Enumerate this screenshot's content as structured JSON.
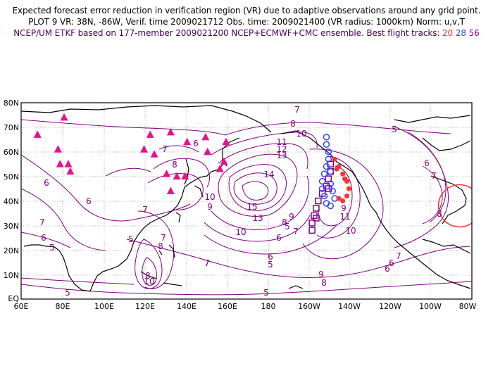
{
  "header": {
    "line1": "Expected forecast error reduction in verification region (VR) due to adaptive observations around any grid point.",
    "line2": "PLOT 9 VR: 38N, -86W, Verif. time 2009021712 Obs. time: 2009021400 (VR radius: 1000km) Norm: u,v,T",
    "line3_prefix": "NCEP/UM ETKF based on 177-member 2009021200 NCEP+ECMWF+CMC ensemble. Best flight tracks:",
    "track_ids": [
      "20",
      "28",
      "56"
    ]
  },
  "colors": {
    "contour": "#800080",
    "label": "#800080",
    "coast": "#000000",
    "triangle": "#e8108c",
    "track20": "#ff3030",
    "track28": "#3040ff",
    "track56": "#800080",
    "vr_circle": "#ff3030",
    "grid": "#999999"
  },
  "axes": {
    "lat_labels": [
      "80N",
      "70N",
      "60N",
      "50N",
      "40N",
      "30N",
      "20N",
      "10N",
      "EQ"
    ],
    "lon_labels": [
      "60E",
      "80E",
      "100E",
      "120E",
      "140E",
      "160E",
      "180",
      "160W",
      "140W",
      "120W",
      "100W",
      "80W"
    ]
  },
  "contour_labels": [
    {
      "text": "7"
    },
    {
      "text": "8"
    },
    {
      "text": "10"
    },
    {
      "text": "11"
    },
    {
      "text": "12"
    },
    {
      "text": "13"
    },
    {
      "text": "14"
    },
    {
      "text": "15"
    },
    {
      "text": "13"
    },
    {
      "text": "10"
    },
    {
      "text": "9"
    },
    {
      "text": "8"
    },
    {
      "text": "7"
    },
    {
      "text": "6"
    },
    {
      "text": "5"
    },
    {
      "text": "7"
    },
    {
      "text": "6"
    },
    {
      "text": "5"
    },
    {
      "text": "6"
    },
    {
      "text": "8"
    },
    {
      "text": "9"
    },
    {
      "text": "10"
    },
    {
      "text": "7"
    },
    {
      "text": "8"
    },
    {
      "text": "7"
    },
    {
      "text": "6"
    },
    {
      "text": "5"
    },
    {
      "text": "7"
    },
    {
      "text": "6"
    },
    {
      "text": "7"
    },
    {
      "text": "8"
    },
    {
      "text": "10"
    },
    {
      "text": "5"
    },
    {
      "text": "7"
    },
    {
      "text": "5"
    },
    {
      "text": "9"
    },
    {
      "text": "8"
    },
    {
      "text": "6"
    },
    {
      "text": "5"
    },
    {
      "text": "10"
    },
    {
      "text": "11"
    },
    {
      "text": "9"
    },
    {
      "text": "7"
    },
    {
      "text": "6"
    },
    {
      "text": "6"
    },
    {
      "text": "7"
    },
    {
      "text": "8"
    },
    {
      "text": "6"
    },
    {
      "text": "5"
    }
  ],
  "markers": {
    "triangles": [
      {
        "lon": 68,
        "lat": 67
      },
      {
        "lon": 81,
        "lat": 74
      },
      {
        "lon": 78,
        "lat": 61
      },
      {
        "lon": 79,
        "lat": 55
      },
      {
        "lon": 83,
        "lat": 55
      },
      {
        "lon": 84,
        "lat": 52
      },
      {
        "lon": 120,
        "lat": 61
      },
      {
        "lon": 123,
        "lat": 67
      },
      {
        "lon": 125,
        "lat": 59
      },
      {
        "lon": 133,
        "lat": 68
      },
      {
        "lon": 141,
        "lat": 64
      },
      {
        "lon": 150,
        "lat": 66
      },
      {
        "lon": 151,
        "lat": 60
      },
      {
        "lon": 160,
        "lat": 64
      },
      {
        "lon": 159,
        "lat": 56
      },
      {
        "lon": 157,
        "lat": 53
      },
      {
        "lon": 131,
        "lat": 51
      },
      {
        "lon": 136,
        "lat": 50
      },
      {
        "lon": 140,
        "lat": 50
      },
      {
        "lon": 133,
        "lat": 44
      }
    ],
    "track_20": [
      {
        "lon": -147,
        "lat": 57
      },
      {
        "lon": -145,
        "lat": 54
      },
      {
        "lon": -143,
        "lat": 51
      },
      {
        "lon": -141,
        "lat": 48
      },
      {
        "lon": -140,
        "lat": 45
      },
      {
        "lon": -141,
        "lat": 42
      },
      {
        "lon": -143,
        "lat": 40
      },
      {
        "lon": -145,
        "lat": 41
      },
      {
        "lon": -146,
        "lat": 53
      },
      {
        "lon": -142,
        "lat": 49
      }
    ],
    "track_28": [
      {
        "lon": -151,
        "lat": 66
      },
      {
        "lon": -151,
        "lat": 63
      },
      {
        "lon": -150,
        "lat": 60
      },
      {
        "lon": -150,
        "lat": 57
      },
      {
        "lon": -151,
        "lat": 54
      },
      {
        "lon": -152,
        "lat": 51
      },
      {
        "lon": -153,
        "lat": 48
      },
      {
        "lon": -153,
        "lat": 45
      },
      {
        "lon": -152,
        "lat": 42
      },
      {
        "lon": -151,
        "lat": 39
      },
      {
        "lon": -149,
        "lat": 38
      },
      {
        "lon": -147,
        "lat": 41
      },
      {
        "lon": -148,
        "lat": 44
      },
      {
        "lon": -149,
        "lat": 47
      },
      {
        "lon": -149,
        "lat": 52
      }
    ],
    "track_56": [
      {
        "lon": -149,
        "lat": 55
      },
      {
        "lon": -149,
        "lat": 52
      },
      {
        "lon": -150,
        "lat": 49
      },
      {
        "lon": -151,
        "lat": 46
      },
      {
        "lon": -153,
        "lat": 43
      },
      {
        "lon": -155,
        "lat": 40
      },
      {
        "lon": -156,
        "lat": 37
      },
      {
        "lon": -157,
        "lat": 34
      },
      {
        "lon": -158,
        "lat": 31
      },
      {
        "lon": -158,
        "lat": 28
      },
      {
        "lon": -156,
        "lat": 33
      },
      {
        "lon": -150,
        "lat": 45
      }
    ],
    "vr_center": {
      "lon": -86,
      "lat": 38
    }
  }
}
